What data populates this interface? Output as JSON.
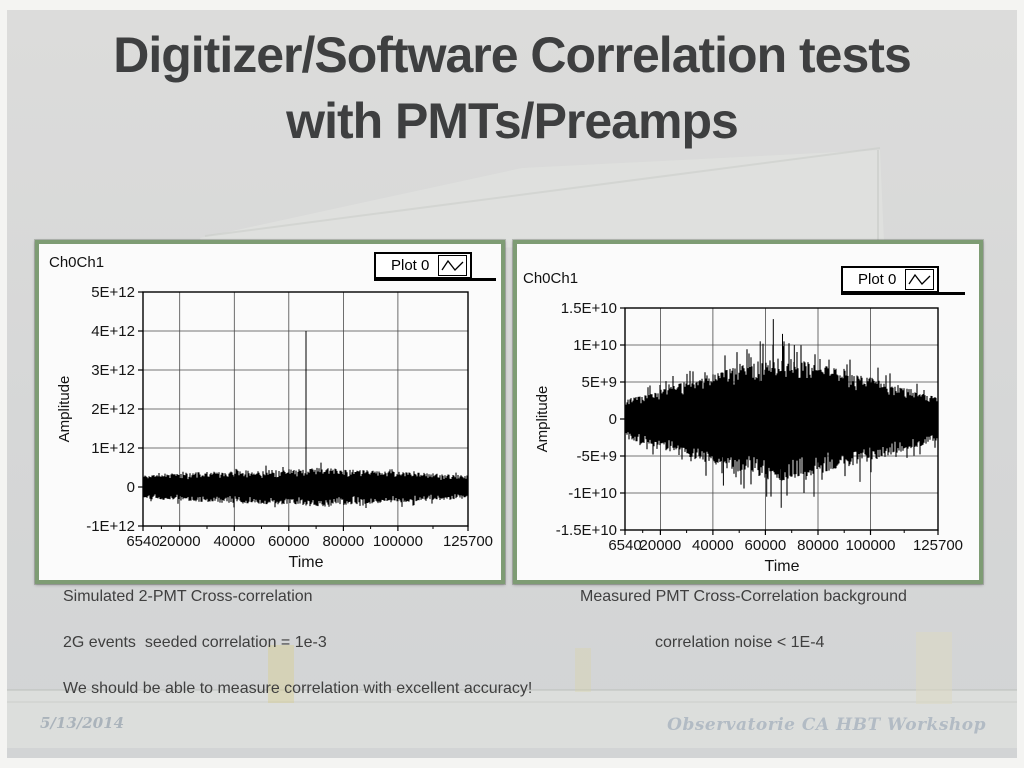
{
  "slide": {
    "title_line1": "Digitizer/Software Correlation tests",
    "title_line2": "with PMTs/Preamps",
    "footer": {
      "date": "5/13/2014",
      "credit": "Observatorie CA HBT Workshop"
    }
  },
  "captions": {
    "left": [
      "Simulated 2-PMT Cross-correlation",
      "2G events  seeded correlation = 1e-3",
      "We should be able to measure correlation with excellent accuracy!"
    ],
    "right": [
      "Measured PMT Cross-Correlation background",
      "correlation noise < 1E-4"
    ]
  },
  "colors": {
    "slide_bg": "#d5d6d6",
    "plot_frame_green": "#7e9c74",
    "plot_bg": "#fbfbfb",
    "grid": "#4a4a4a",
    "trace": "#000000",
    "title_text": "#3e3f40",
    "caption_text": "#3f3f3f",
    "footer_text": "#a8b3bf"
  },
  "chart_data": [
    {
      "type": "line",
      "title": "Ch0Ch1",
      "legend": {
        "label": "Plot 0",
        "position": "top-right",
        "symbol": "zigzag-line-icon"
      },
      "xlabel": "Time",
      "ylabel": "Amplitude",
      "xlim": [
        6540,
        125700
      ],
      "ylim": [
        -1000000000000.0,
        5000000000000.0
      ],
      "xticks": [
        6540,
        20000,
        40000,
        60000,
        80000,
        100000,
        125700
      ],
      "xtick_labels": [
        "6540",
        "20000",
        "40000",
        "60000",
        "80000",
        "100000",
        "125700"
      ],
      "yticks": [
        5000000000000.0,
        4000000000000.0,
        3000000000000.0,
        2000000000000.0,
        1000000000000.0,
        0,
        -1000000000000.0
      ],
      "ytick_labels": [
        "5E+12",
        "4E+12",
        "3E+12",
        "2E+12",
        "1E+12",
        "0",
        "-1E+12"
      ],
      "grid": true,
      "series": [
        {
          "name": "Ch0Ch1 cross-correlation (simulated)",
          "description": "zero-mean noise band, half-amplitude envelope points [time, amplitude]",
          "envelope": [
            [
              6540,
              300000000000.0
            ],
            [
              20000,
              360000000000.0
            ],
            [
              40000,
              420000000000.0
            ],
            [
              60000,
              460000000000.0
            ],
            [
              70000,
              500000000000.0
            ],
            [
              85000,
              440000000000.0
            ],
            [
              100000,
              400000000000.0
            ],
            [
              115000,
              340000000000.0
            ],
            [
              125700,
              300000000000.0
            ]
          ],
          "spikes": [
            {
              "x": 66300,
              "y": 4000000000000.0
            }
          ]
        }
      ]
    },
    {
      "type": "line",
      "title": "Ch0Ch1",
      "legend": {
        "label": "Plot 0",
        "position": "top-right",
        "symbol": "zigzag-line-icon"
      },
      "xlabel": "Time",
      "ylabel": "Amplitude",
      "xlim": [
        6540,
        125700
      ],
      "ylim": [
        -15000000000.0,
        15000000000.0
      ],
      "xticks": [
        6540,
        20000,
        40000,
        60000,
        80000,
        100000,
        125700
      ],
      "xtick_labels": [
        "6540",
        "20000",
        "40000",
        "60000",
        "80000",
        "100000",
        "125700"
      ],
      "yticks": [
        15000000000.0,
        10000000000.0,
        5000000000.0,
        0,
        -5000000000.0,
        -10000000000.0,
        -15000000000.0
      ],
      "ytick_labels": [
        "1.5E+10",
        "1E+10",
        "5E+9",
        "0",
        "-5E+9",
        "-1E+10",
        "-1.5E+10"
      ],
      "grid": true,
      "series": [
        {
          "name": "Ch0Ch1 cross-correlation background (measured)",
          "description": "zero-mean noise band, half-amplitude envelope points [time, amplitude]",
          "envelope": [
            [
              6540,
              2600000000.0
            ],
            [
              20000,
              4000000000.0
            ],
            [
              40000,
              6200000000.0
            ],
            [
              55000,
              7600000000.0
            ],
            [
              65000,
              8400000000.0
            ],
            [
              75000,
              7800000000.0
            ],
            [
              90000,
              6600000000.0
            ],
            [
              105000,
              5200000000.0
            ],
            [
              118000,
              3800000000.0
            ],
            [
              125700,
              3000000000.0
            ]
          ],
          "spikes": [
            {
              "x": 58000,
              "y": 10500000000.0
            },
            {
              "x": 63000,
              "y": 13500000000.0
            },
            {
              "x": 66500,
              "y": 11500000000.0
            },
            {
              "x": 71000,
              "y": 10000000000.0
            },
            {
              "x": 60500,
              "y": -10500000000.0
            },
            {
              "x": 66000,
              "y": -12000000000.0
            },
            {
              "x": 78500,
              "y": -10500000000.0
            },
            {
              "x": 44000,
              "y": -9000000000.0
            },
            {
              "x": 96000,
              "y": -8500000000.0
            }
          ]
        }
      ]
    }
  ]
}
